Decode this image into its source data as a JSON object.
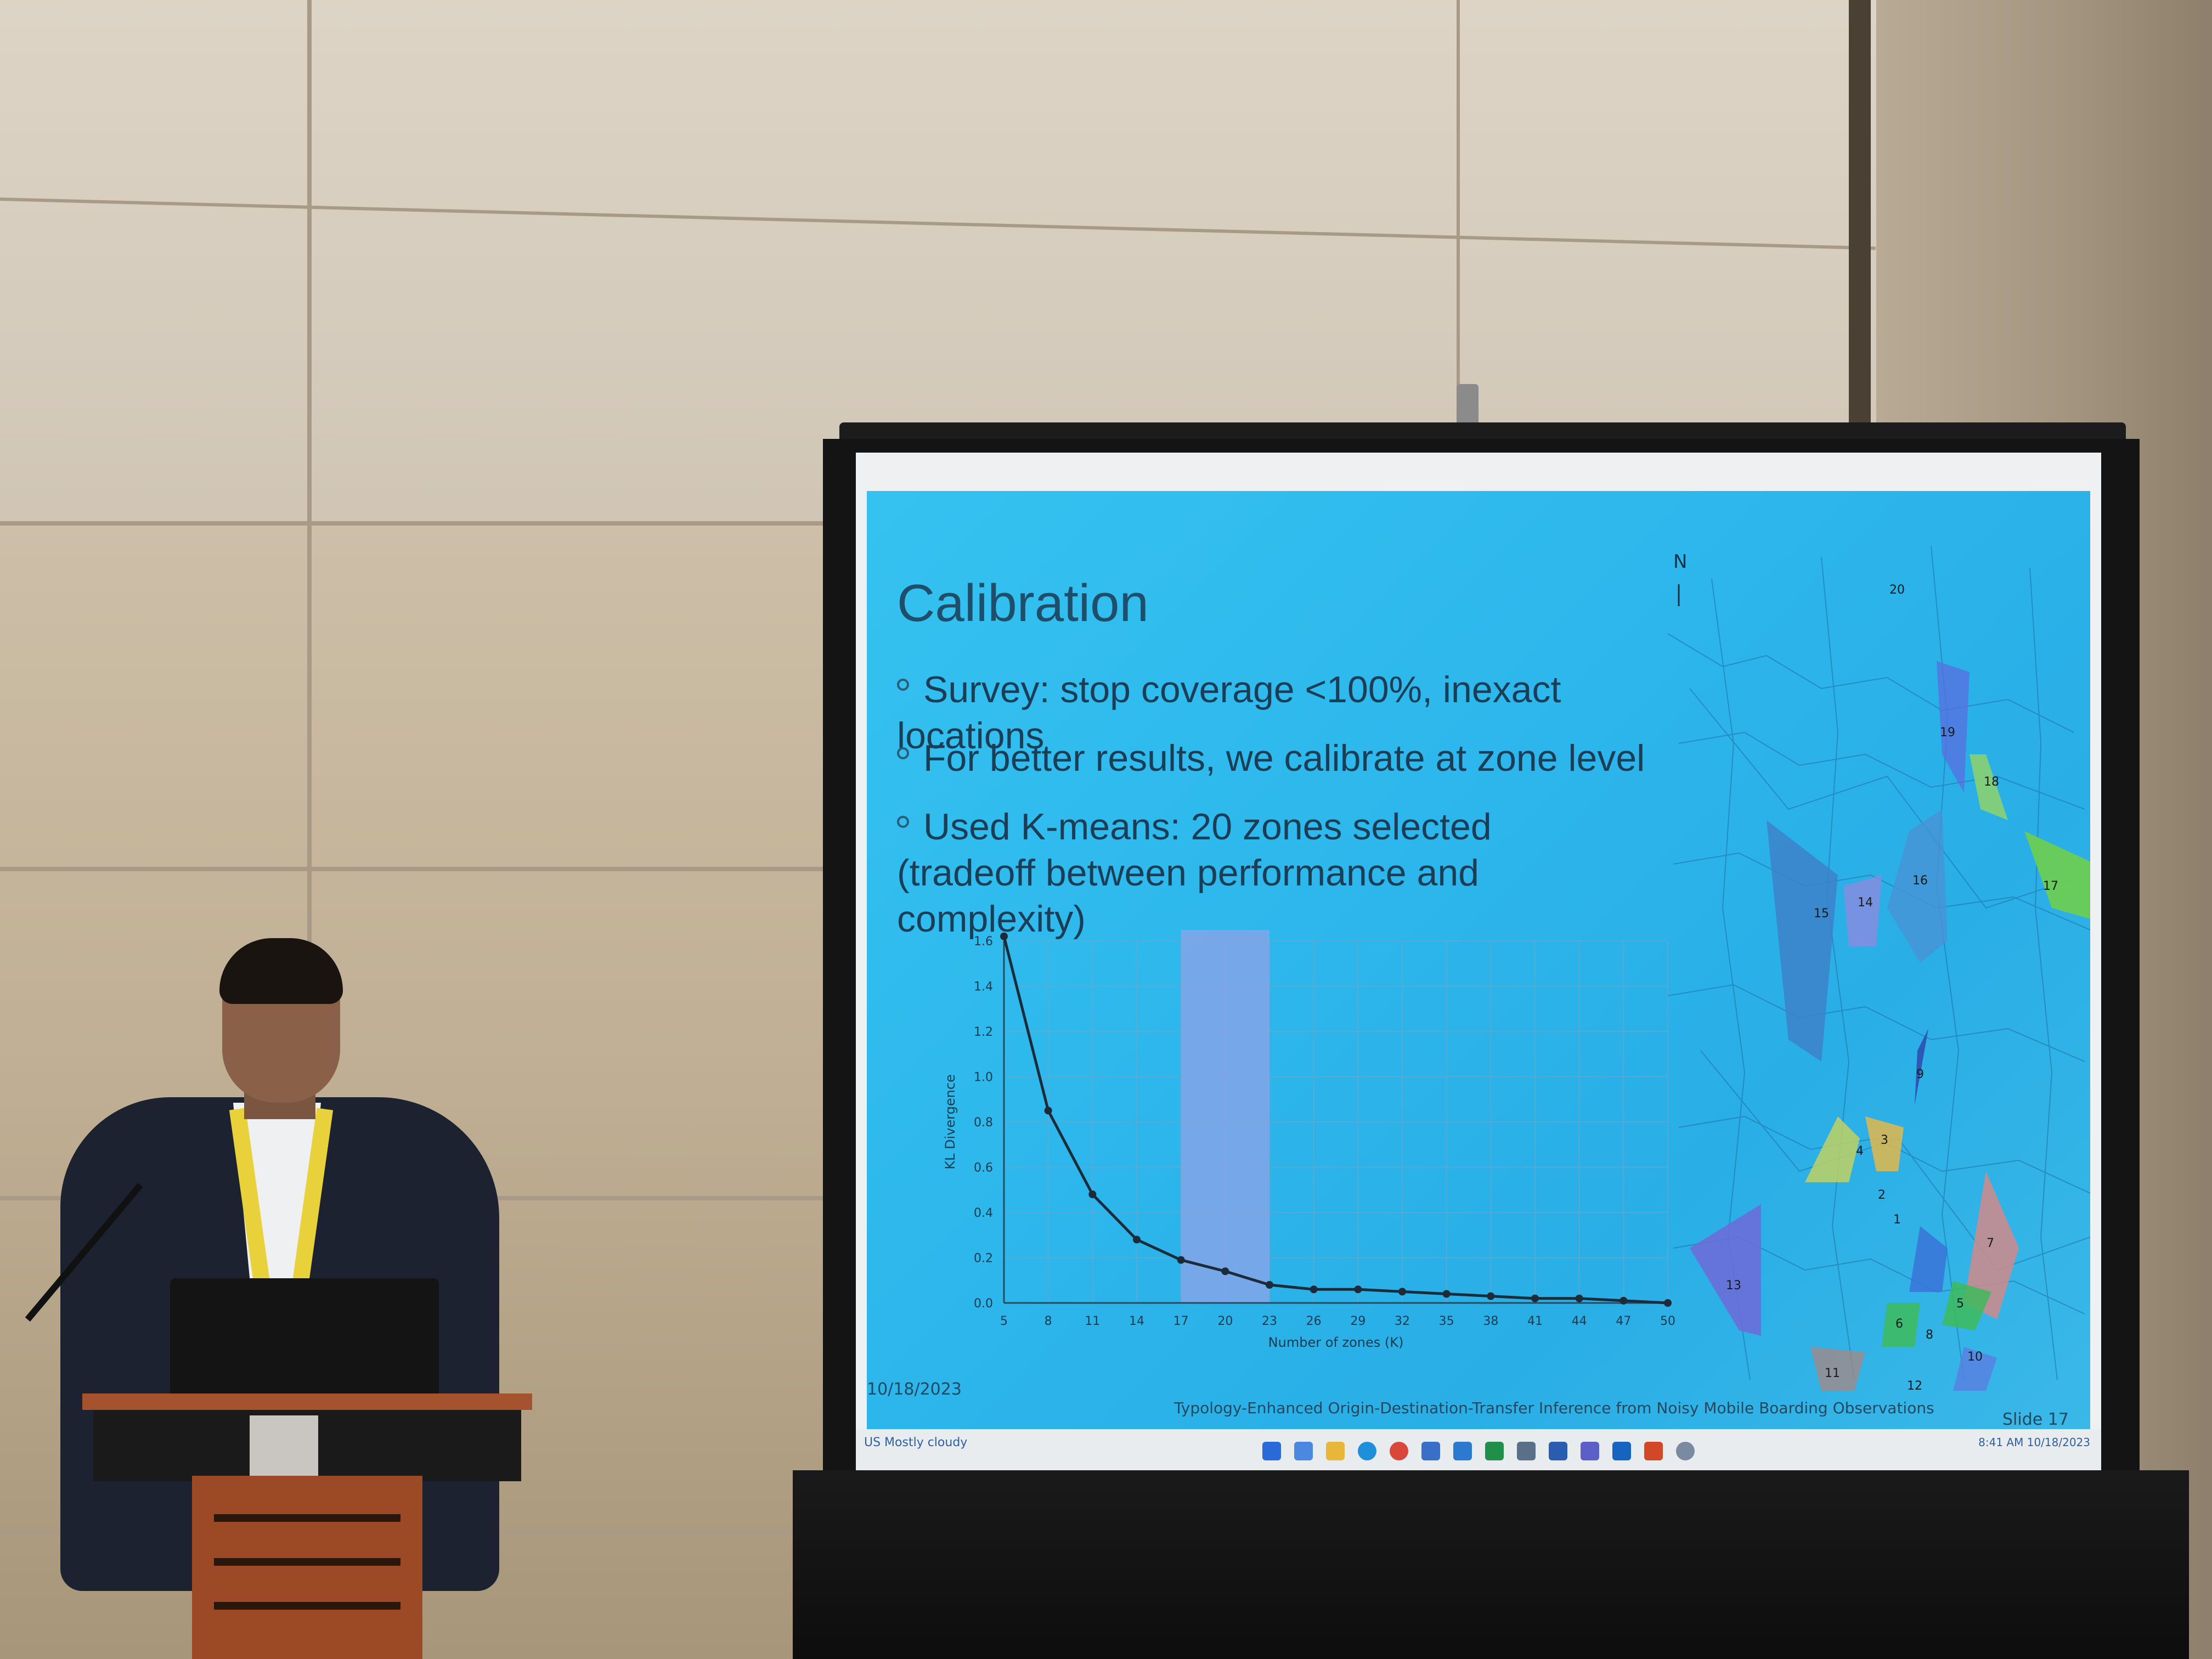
{
  "slide": {
    "title": "Calibration",
    "bullets": [
      "Survey: stop coverage <100%, inexact locations",
      "For better results, we calibrate at zone level",
      "Used K-means: 20 zones selected (tradeoff between performance and complexity)"
    ],
    "footer_date": "10/18/2023",
    "footer_title": "Typology-Enhanced Origin-Destination-Transfer Inference from Noisy Mobile Boarding Observations",
    "footer_slide": "Slide 17",
    "background_color": "#2db7ec"
  },
  "chart_data": {
    "type": "line",
    "xlabel": "Number of zones (K)",
    "ylabel": "KL Divergence",
    "x": [
      5,
      8,
      11,
      14,
      17,
      20,
      23,
      26,
      29,
      32,
      35,
      38,
      41,
      44,
      47,
      50
    ],
    "values": [
      1.62,
      0.85,
      0.48,
      0.28,
      0.19,
      0.14,
      0.08,
      0.06,
      0.06,
      0.05,
      0.04,
      0.03,
      0.02,
      0.02,
      0.01,
      0.0
    ],
    "x_ticks": [
      "5",
      "8",
      "11",
      "14",
      "17",
      "20",
      "23",
      "26",
      "29",
      "32",
      "35",
      "38",
      "41",
      "44",
      "47",
      "50"
    ],
    "y_ticks": [
      "0.0",
      "0.2",
      "0.4",
      "0.6",
      "0.8",
      "1.0",
      "1.2",
      "1.4",
      "1.6"
    ],
    "ylim": [
      0,
      1.6
    ],
    "highlight_range": [
      17,
      23
    ],
    "grid": true
  },
  "map": {
    "north_label": "N",
    "zone_labels": [
      "1",
      "2",
      "3",
      "4",
      "5",
      "6",
      "7",
      "8",
      "9",
      "10",
      "11",
      "12",
      "13",
      "14",
      "15",
      "16",
      "17",
      "18",
      "19",
      "20"
    ]
  },
  "taskbar": {
    "left_label": "US Mostly cloudy",
    "right_label": "8:41 AM 10/18/2023"
  }
}
